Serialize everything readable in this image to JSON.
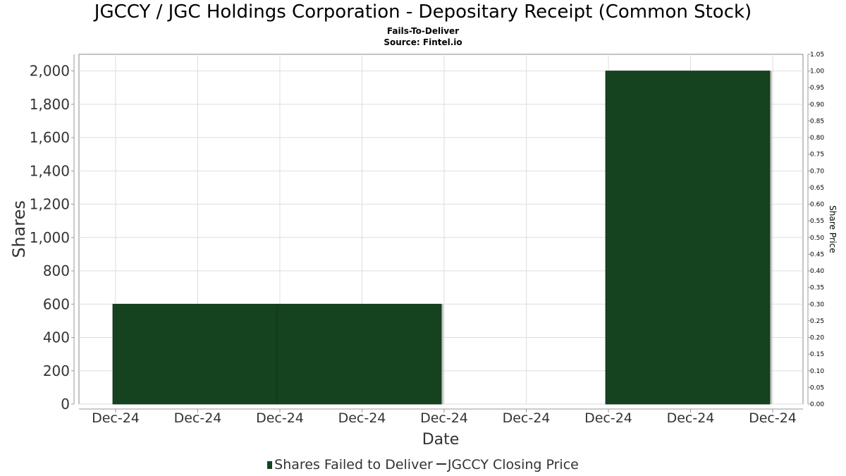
{
  "title": "JGCCY / JGC Holdings Corporation - Depositary Receipt (Common Stock)",
  "subtitle1": "Fails-To-Deliver",
  "subtitle2": "Source: Fintel.io",
  "legend": {
    "series1": "Shares Failed to Deliver",
    "series2": "JGCCY Closing Price"
  },
  "colors": {
    "bar": "#15431f",
    "grid": "#dddddd",
    "axis_text": "#333333"
  },
  "chart_data": {
    "type": "bar",
    "title": "JGCCY / JGC Holdings Corporation - Depositary Receipt (Common Stock)",
    "xlabel": "Date",
    "ylabel": "Shares",
    "y2label": "Share Price",
    "x_tick_labels": [
      "Dec-24",
      "Dec-24",
      "Dec-24",
      "Dec-24",
      "Dec-24",
      "Dec-24",
      "Dec-24",
      "Dec-24",
      "Dec-24"
    ],
    "ylim": [
      0,
      2100
    ],
    "y_ticks": [
      0,
      200,
      400,
      600,
      800,
      1000,
      1200,
      1400,
      1600,
      1800,
      2000
    ],
    "y2lim": [
      0,
      1.05
    ],
    "y2_ticks": [
      "0.00",
      "0.05",
      "0.10",
      "0.15",
      "0.20",
      "0.25",
      "0.30",
      "0.35",
      "0.40",
      "0.45",
      "0.50",
      "0.55",
      "0.60",
      "0.65",
      "0.70",
      "0.75",
      "0.80",
      "0.85",
      "0.90",
      "0.95",
      "1.00",
      "1.05"
    ],
    "grid": true,
    "legend_position": "bottom",
    "series": [
      {
        "name": "Shares Failed to Deliver",
        "type": "bar",
        "bars": [
          {
            "start_tick": 0,
            "end_tick": 2,
            "value": 600
          },
          {
            "start_tick": 2,
            "end_tick": 4,
            "value": 600
          },
          {
            "start_tick": 6,
            "end_tick": 8,
            "value": 2000
          }
        ]
      },
      {
        "name": "JGCCY Closing Price",
        "type": "line",
        "values": []
      }
    ]
  }
}
